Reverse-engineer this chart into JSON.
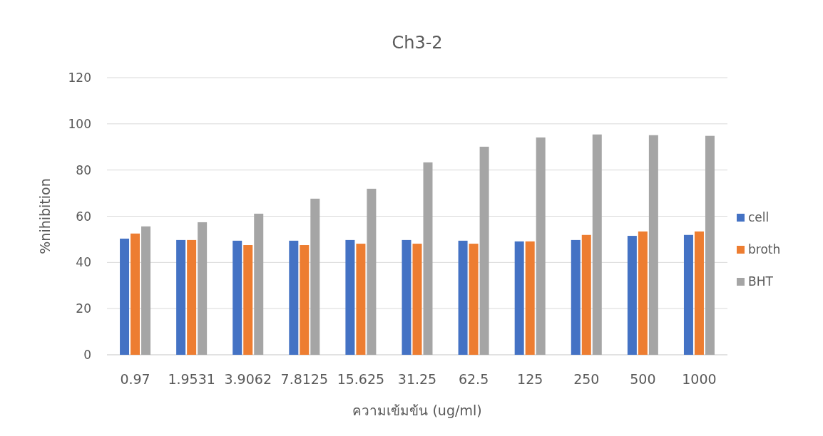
{
  "chart_data": {
    "type": "bar",
    "title": "Ch3-2",
    "xlabel": "ความเข้มข้น (ug/ml)",
    "ylabel": "%nihibition",
    "categories": [
      "0.97",
      "1.9531",
      "3.9062",
      "7.8125",
      "15.625",
      "31.25",
      "62.5",
      "125",
      "250",
      "500",
      "1000"
    ],
    "series": [
      {
        "name": "cell",
        "color": "#4472c4",
        "values": [
          50.3,
          49.7,
          49.4,
          49.4,
          49.7,
          49.7,
          49.4,
          49.1,
          49.7,
          51.5,
          51.9
        ]
      },
      {
        "name": "broth",
        "color": "#ed7d31",
        "values": [
          52.5,
          49.7,
          47.5,
          47.5,
          48.1,
          48.1,
          48.1,
          49.1,
          51.9,
          53.4,
          53.4
        ]
      },
      {
        "name": "BHT",
        "color": "#a5a5a5",
        "values": [
          55.6,
          57.4,
          61.1,
          67.6,
          71.9,
          83.3,
          90.1,
          94.1,
          95.4,
          95.1,
          94.8
        ]
      }
    ],
    "ylim": [
      0,
      120
    ],
    "yticks": [
      0,
      20,
      40,
      60,
      80,
      100,
      120
    ],
    "grid": "y",
    "legend": "right"
  }
}
